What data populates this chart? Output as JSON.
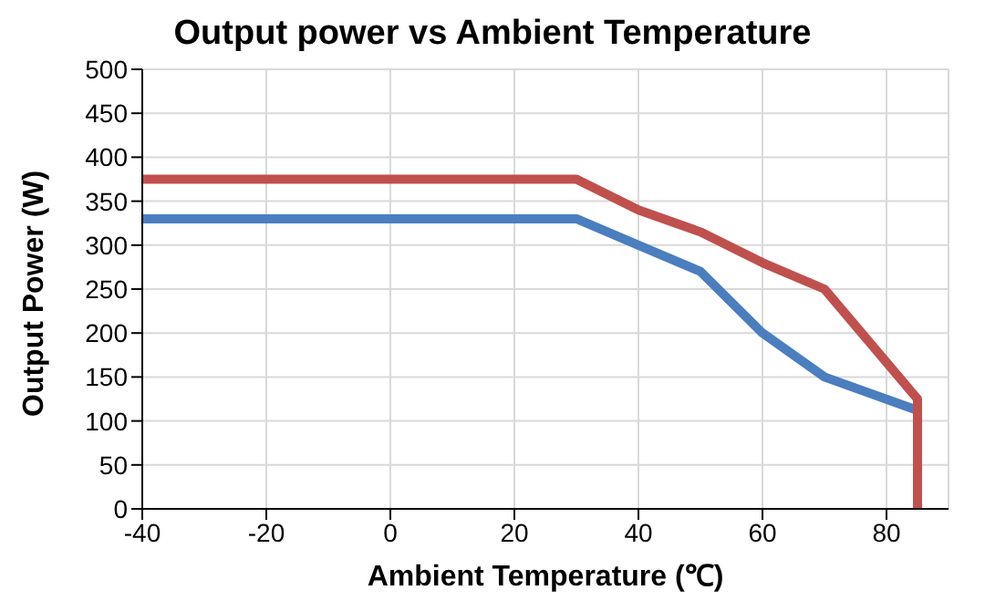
{
  "chart_data": {
    "type": "line",
    "title": "Output power vs Ambient Temperature",
    "xlabel": "Ambient Temperature (℃)",
    "ylabel": "Output Power (W)",
    "series": [
      {
        "color": "#4a7ebf",
        "x": [
          -40,
          30,
          40,
          50,
          60,
          70,
          85
        ],
        "values": [
          330,
          330,
          300,
          270,
          200,
          150,
          112
        ]
      },
      {
        "color": "#c0504d",
        "x": [
          -40,
          30,
          40,
          50,
          60,
          70,
          85,
          85
        ],
        "values": [
          375,
          375,
          340,
          315,
          280,
          250,
          125,
          0
        ]
      }
    ],
    "xlim": [
      -40,
      90
    ],
    "xticks": [
      -40,
      -20,
      0,
      20,
      40,
      60,
      80
    ],
    "ylim": [
      0,
      500
    ],
    "yticks": [
      0,
      50,
      100,
      150,
      200,
      250,
      300,
      350,
      400,
      450,
      500
    ],
    "grid": true,
    "marker": "none",
    "line_style": "solid"
  }
}
